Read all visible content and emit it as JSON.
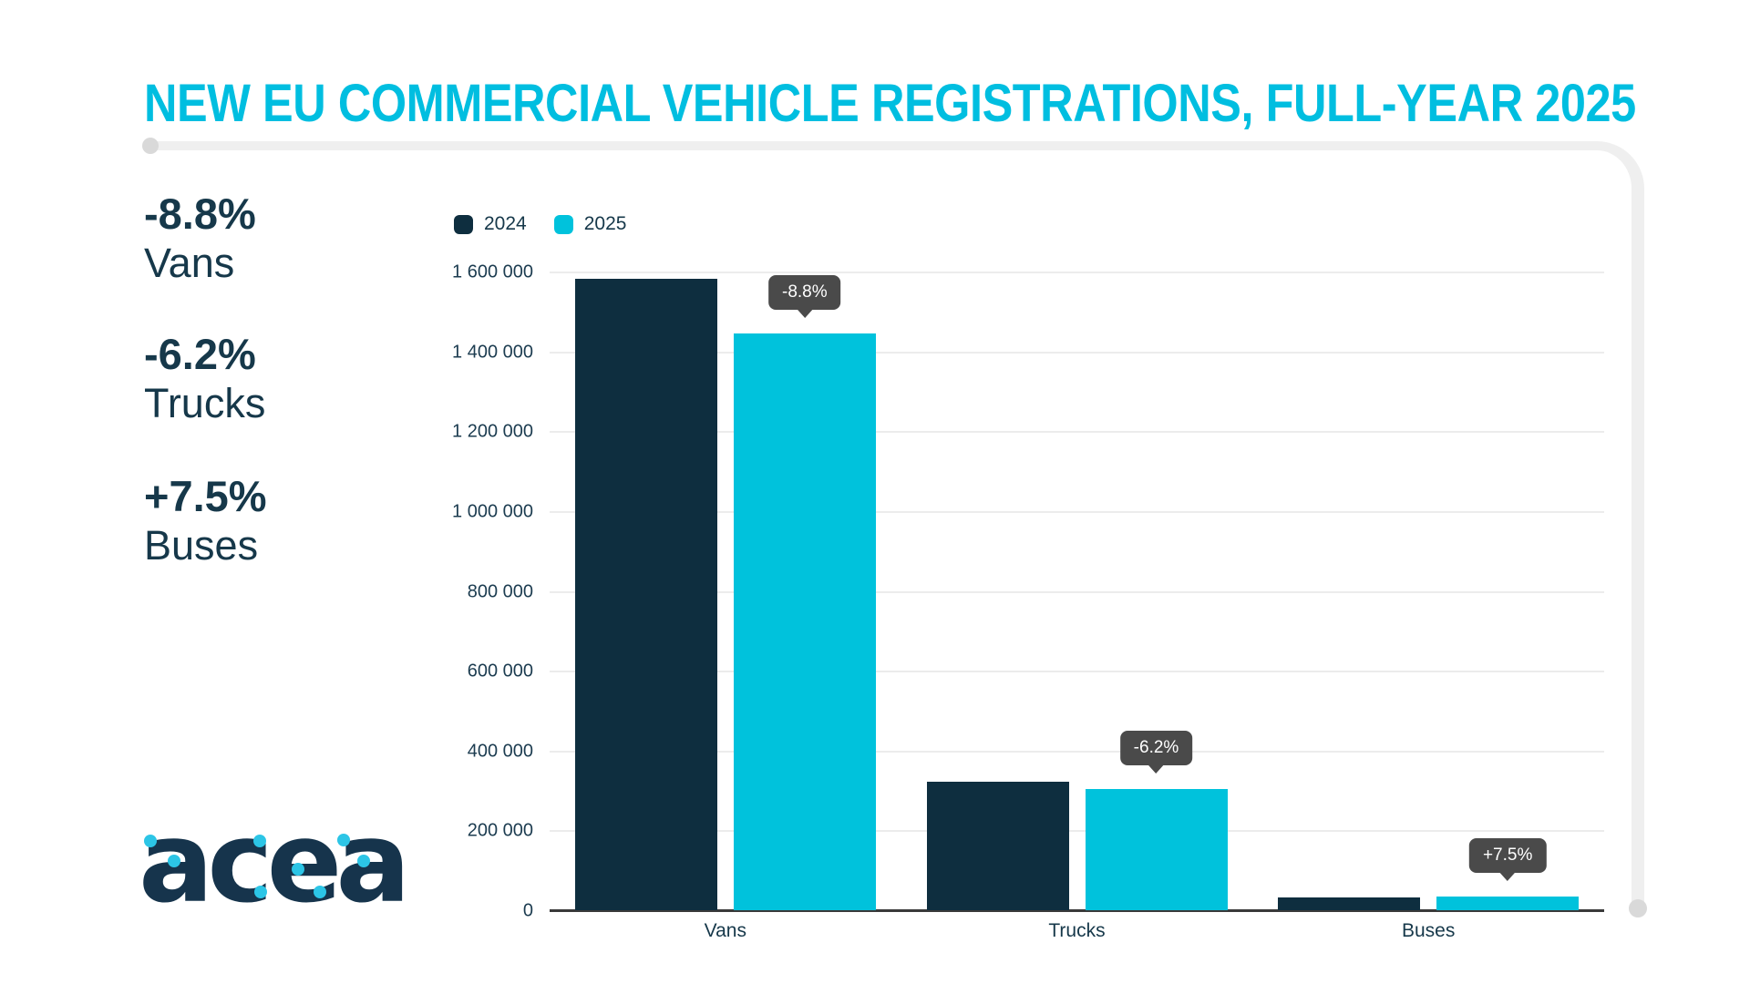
{
  "title": "NEW EU COMMERCIAL VEHICLE REGISTRATIONS, FULL-YEAR 2025",
  "colors": {
    "accent": "#00bee0",
    "navy": "#0e2e3f",
    "cyan": "#00c2dc",
    "navy_text": "#16384a",
    "tooltip_bg": "#4a4a4a"
  },
  "stats": [
    {
      "value": "-8.8%",
      "label": "Vans"
    },
    {
      "value": "-6.2%",
      "label": "Trucks"
    },
    {
      "value": "+7.5%",
      "label": "Buses"
    }
  ],
  "legend": [
    {
      "label": "2024",
      "color": "#0e2e3f"
    },
    {
      "label": "2025",
      "color": "#00c2dc"
    }
  ],
  "logo_text": "acea",
  "chart_data": {
    "type": "bar",
    "title": "NEW EU COMMERCIAL VEHICLE REGISTRATIONS, FULL-YEAR 2025",
    "categories": [
      "Vans",
      "Trucks",
      "Buses"
    ],
    "series": [
      {
        "name": "2024",
        "color": "#0e2e3f",
        "values": [
          1585000,
          325000,
          34000
        ]
      },
      {
        "name": "2025",
        "color": "#00c2dc",
        "values": [
          1446000,
          305000,
          36500
        ]
      }
    ],
    "annotations": [
      {
        "category": "Vans",
        "label": "-8.8%"
      },
      {
        "category": "Trucks",
        "label": "-6.2%"
      },
      {
        "category": "Buses",
        "label": "+7.5%"
      }
    ],
    "xlabel": "",
    "ylabel": "",
    "ylim": [
      0,
      1600000
    ],
    "ytick_interval": 200000,
    "ytick_labels": [
      "1 600 000",
      "1 400 000",
      "1 200 000",
      "1 000 000",
      "800 000",
      "600 000",
      "400 000",
      "200 000",
      "0"
    ],
    "grid": true,
    "legend_position": "top-left"
  }
}
